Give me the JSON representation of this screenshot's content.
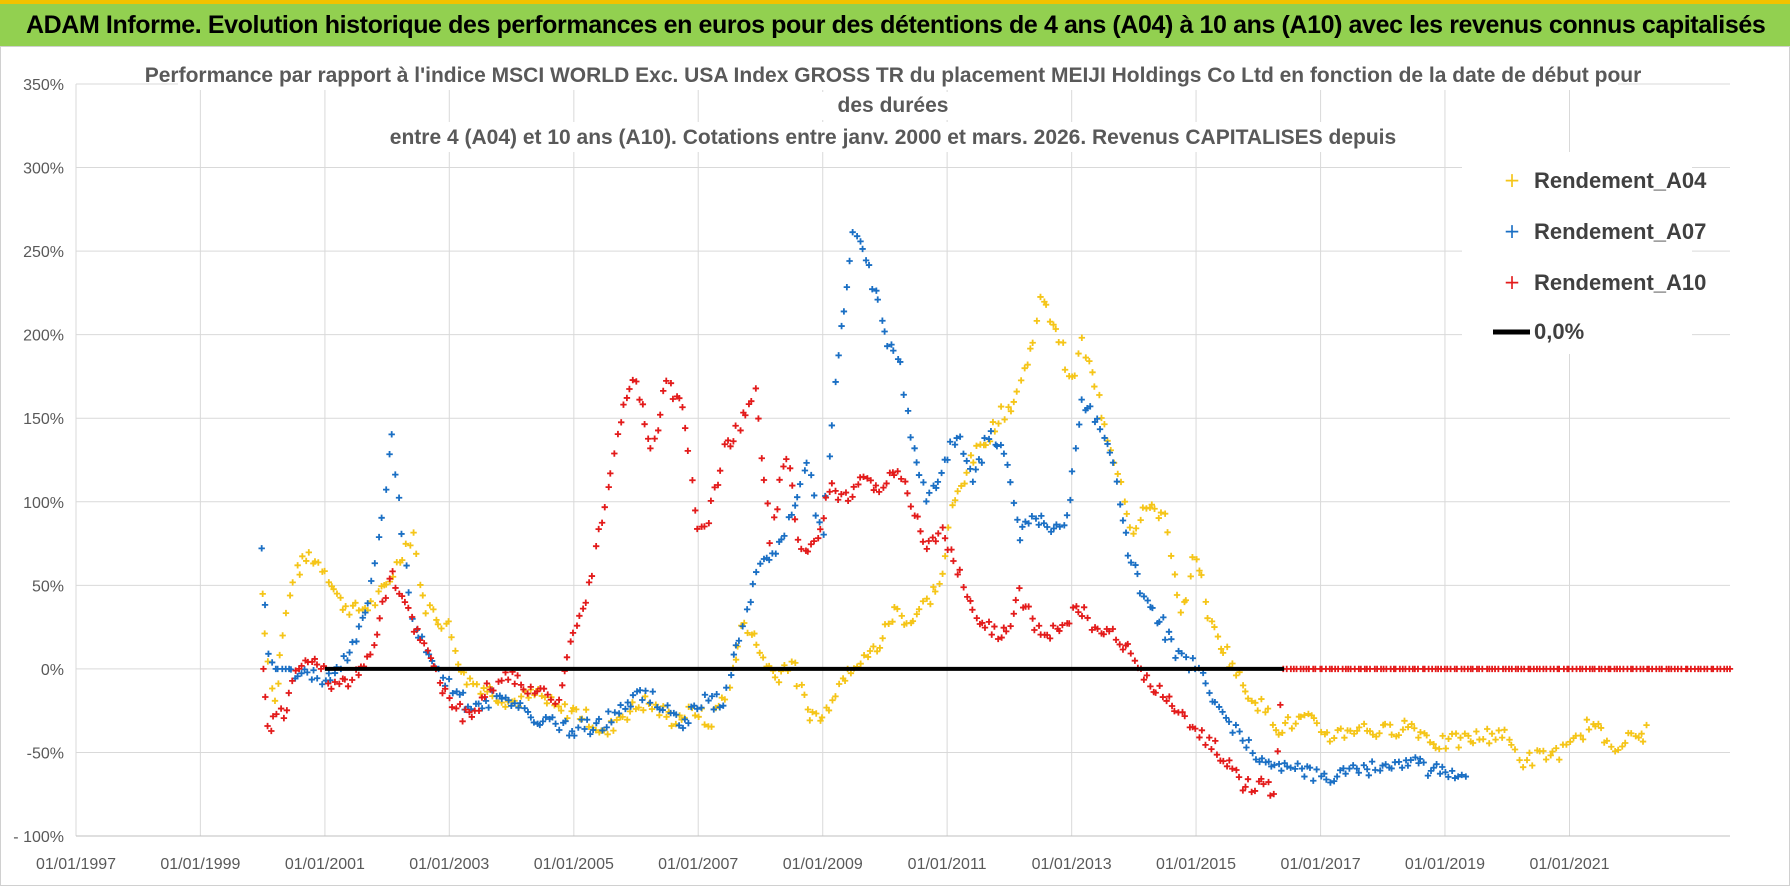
{
  "header": {
    "banner_text": "ADAM Informe. Evolution historique des performances en euros pour des détentions de 4 ans (A04) à 10 ans (A10) avec les revenus connus capitalisés"
  },
  "colors": {
    "banner_bg": "#92d050",
    "banner_border": "#f2c200",
    "A04": "#f5c518",
    "A07": "#1a6fc4",
    "A10": "#e31b1b",
    "zero_line": "#000000",
    "grid": "#d9d9d9"
  },
  "chart_data": {
    "type": "scatter",
    "title_lines": [
      "Performance par rapport à l'indice MSCI WORLD Exc. USA Index GROSS TR  du placement MEIJI Holdings Co Ltd en fonction de la date de début pour",
      "des durées",
      "entre 4 (A04) et 10 ans (A10). Cotations entre janv. 2000 et mars. 2026. Revenus CAPITALISES depuis"
    ],
    "x_axis": {
      "type": "date",
      "range": [
        "1997-01-01",
        "2023-08-01"
      ],
      "tick_labels": [
        "01/01/1997",
        "01/01/1999",
        "01/01/2001",
        "01/01/2003",
        "01/01/2005",
        "01/01/2007",
        "01/01/2009",
        "01/01/2011",
        "01/01/2013",
        "01/01/2015",
        "01/01/2017",
        "01/01/2019",
        "01/01/2021"
      ],
      "ticks": [
        "1997-01-01",
        "1999-01-01",
        "2001-01-01",
        "2003-01-01",
        "2005-01-01",
        "2007-01-01",
        "2009-01-01",
        "2011-01-01",
        "2013-01-01",
        "2015-01-01",
        "2017-01-01",
        "2019-01-01",
        "2021-01-01"
      ]
    },
    "y_axis": {
      "unit": "%",
      "range": [
        -100,
        350
      ],
      "ticks": [
        -100,
        -50,
        0,
        50,
        100,
        150,
        200,
        250,
        300,
        350
      ],
      "tick_labels": [
        "- 100%",
        "-50%",
        "0%",
        "50%",
        "100%",
        "150%",
        "200%",
        "250%",
        "300%",
        "350%"
      ]
    },
    "grid": true,
    "legend_position": "top-right",
    "legend": [
      "Rendement_A04",
      "Rendement_A07",
      "Rendement_A10",
      "0,0%"
    ],
    "series": [
      {
        "name": "Rendement_A04",
        "marker": "+",
        "color": "#f5c518",
        "points": [
          [
            "2000-01-01",
            45
          ],
          [
            "2000-02-01",
            5
          ],
          [
            "2000-03-15",
            -20
          ],
          [
            "2000-05-01",
            20
          ],
          [
            "2000-07-01",
            55
          ],
          [
            "2000-10-01",
            68
          ],
          [
            "2001-01-01",
            60
          ],
          [
            "2001-04-01",
            40
          ],
          [
            "2001-07-01",
            35
          ],
          [
            "2001-10-01",
            38
          ],
          [
            "2002-01-01",
            50
          ],
          [
            "2002-04-01",
            70
          ],
          [
            "2002-06-01",
            82
          ],
          [
            "2002-08-01",
            40
          ],
          [
            "2002-11-01",
            30
          ],
          [
            "2003-01-01",
            25
          ],
          [
            "2003-04-01",
            -5
          ],
          [
            "2003-07-01",
            -10
          ],
          [
            "2003-10-01",
            -15
          ],
          [
            "2004-01-01",
            -20
          ],
          [
            "2004-06-01",
            -15
          ],
          [
            "2004-10-01",
            -25
          ],
          [
            "2005-01-01",
            -25
          ],
          [
            "2005-04-01",
            -30
          ],
          [
            "2005-07-01",
            -40
          ],
          [
            "2005-10-01",
            -28
          ],
          [
            "2006-03-01",
            -20
          ],
          [
            "2006-08-01",
            -30
          ],
          [
            "2007-01-01",
            -25
          ],
          [
            "2007-03-01",
            -35
          ],
          [
            "2007-07-01",
            -10
          ],
          [
            "2007-10-01",
            30
          ],
          [
            "2008-01-01",
            10
          ],
          [
            "2008-04-01",
            -5
          ],
          [
            "2008-07-01",
            5
          ],
          [
            "2008-10-01",
            -25
          ],
          [
            "2009-01-01",
            -30
          ],
          [
            "2009-03-01",
            -15
          ],
          [
            "2009-06-01",
            0
          ],
          [
            "2009-09-01",
            5
          ],
          [
            "2009-12-01",
            15
          ],
          [
            "2010-03-01",
            35
          ],
          [
            "2010-06-01",
            28
          ],
          [
            "2010-09-01",
            40
          ],
          [
            "2010-12-01",
            55
          ],
          [
            "2011-02-01",
            95
          ],
          [
            "2011-05-01",
            120
          ],
          [
            "2011-08-01",
            135
          ],
          [
            "2011-11-01",
            150
          ],
          [
            "2012-02-01",
            160
          ],
          [
            "2012-05-01",
            190
          ],
          [
            "2012-07-01",
            220
          ],
          [
            "2012-10-01",
            205
          ],
          [
            "2013-01-01",
            170
          ],
          [
            "2013-03-01",
            195
          ],
          [
            "2013-05-01",
            175
          ],
          [
            "2013-08-01",
            140
          ],
          [
            "2013-10-01",
            120
          ],
          [
            "2014-01-01",
            80
          ],
          [
            "2014-04-01",
            100
          ],
          [
            "2014-07-01",
            90
          ],
          [
            "2014-10-01",
            30
          ],
          [
            "2015-01-01",
            70
          ],
          [
            "2015-04-01",
            25
          ],
          [
            "2015-07-01",
            10
          ],
          [
            "2015-10-01",
            -10
          ],
          [
            "2016-01-01",
            -20
          ],
          [
            "2016-05-01",
            -35
          ],
          [
            "2016-10-01",
            -30
          ],
          [
            "2017-03-01",
            -40
          ],
          [
            "2017-08-01",
            -35
          ],
          [
            "2018-01-01",
            -38
          ],
          [
            "2018-06-01",
            -33
          ],
          [
            "2018-12-01",
            -45
          ],
          [
            "2019-06-01",
            -42
          ],
          [
            "2019-12-01",
            -38
          ],
          [
            "2020-04-01",
            -55
          ],
          [
            "2020-08-01",
            -52
          ],
          [
            "2021-01-01",
            -48
          ],
          [
            "2021-05-01",
            -32
          ],
          [
            "2021-09-01",
            -45
          ],
          [
            "2022-01-01",
            -42
          ],
          [
            "2022-04-01",
            -38
          ]
        ]
      },
      {
        "name": "Rendement_A07",
        "marker": "+",
        "color": "#1a6fc4",
        "points": [
          [
            "2000-01-01",
            70
          ],
          [
            "2000-02-01",
            10
          ],
          [
            "2000-03-15",
            0
          ],
          [
            "2000-06-01",
            0
          ],
          [
            "2000-09-01",
            -5
          ],
          [
            "2001-01-01",
            -5
          ],
          [
            "2001-04-01",
            0
          ],
          [
            "2001-07-01",
            20
          ],
          [
            "2001-10-01",
            50
          ],
          [
            "2001-12-01",
            95
          ],
          [
            "2002-02-01",
            140
          ],
          [
            "2002-04-01",
            80
          ],
          [
            "2002-06-01",
            30
          ],
          [
            "2002-09-01",
            10
          ],
          [
            "2003-01-01",
            -10
          ],
          [
            "2003-06-01",
            -25
          ],
          [
            "2003-10-01",
            -15
          ],
          [
            "2004-01-01",
            -20
          ],
          [
            "2004-06-01",
            -30
          ],
          [
            "2004-12-01",
            -35
          ],
          [
            "2005-06-01",
            -35
          ],
          [
            "2005-12-01",
            -20
          ],
          [
            "2006-03-01",
            -15
          ],
          [
            "2006-07-01",
            -25
          ],
          [
            "2006-10-01",
            -35
          ],
          [
            "2007-01-01",
            -20
          ],
          [
            "2007-06-01",
            -20
          ],
          [
            "2007-09-01",
            20
          ],
          [
            "2008-01-01",
            60
          ],
          [
            "2008-04-01",
            70
          ],
          [
            "2008-07-01",
            90
          ],
          [
            "2008-10-01",
            120
          ],
          [
            "2009-01-01",
            80
          ],
          [
            "2009-04-01",
            190
          ],
          [
            "2009-07-01",
            260
          ],
          [
            "2009-10-01",
            240
          ],
          [
            "2010-01-01",
            200
          ],
          [
            "2010-04-01",
            180
          ],
          [
            "2010-06-01",
            140
          ],
          [
            "2010-09-01",
            100
          ],
          [
            "2010-12-01",
            120
          ],
          [
            "2011-03-01",
            140
          ],
          [
            "2011-06-01",
            110
          ],
          [
            "2011-09-01",
            140
          ],
          [
            "2011-12-01",
            130
          ],
          [
            "2012-03-01",
            80
          ],
          [
            "2012-06-01",
            90
          ],
          [
            "2012-09-01",
            85
          ],
          [
            "2012-12-01",
            90
          ],
          [
            "2013-03-01",
            160
          ],
          [
            "2013-06-01",
            150
          ],
          [
            "2013-09-01",
            120
          ],
          [
            "2013-12-01",
            70
          ],
          [
            "2014-03-01",
            40
          ],
          [
            "2014-06-01",
            30
          ],
          [
            "2014-09-01",
            10
          ],
          [
            "2015-01-01",
            0
          ],
          [
            "2015-06-01",
            -25
          ],
          [
            "2015-10-01",
            -45
          ],
          [
            "2016-03-01",
            -55
          ],
          [
            "2016-08-01",
            -60
          ],
          [
            "2017-01-01",
            -65
          ],
          [
            "2017-06-01",
            -60
          ],
          [
            "2018-01-01",
            -60
          ],
          [
            "2018-06-01",
            -55
          ],
          [
            "2018-12-01",
            -62
          ],
          [
            "2019-05-01",
            -65
          ]
        ]
      },
      {
        "name": "Rendement_A10",
        "marker": "+",
        "color": "#e31b1b",
        "points": [
          [
            "2000-01-01",
            0
          ],
          [
            "2000-02-01",
            -35
          ],
          [
            "2000-05-01",
            -25
          ],
          [
            "2000-08-01",
            0
          ],
          [
            "2000-11-01",
            5
          ],
          [
            "2001-03-01",
            -10
          ],
          [
            "2001-07-01",
            -5
          ],
          [
            "2001-11-01",
            20
          ],
          [
            "2002-02-01",
            60
          ],
          [
            "2002-04-01",
            40
          ],
          [
            "2002-07-01",
            20
          ],
          [
            "2002-10-01",
            5
          ],
          [
            "2003-01-01",
            -20
          ],
          [
            "2003-05-01",
            -30
          ],
          [
            "2003-09-01",
            -10
          ],
          [
            "2004-01-01",
            -5
          ],
          [
            "2004-06-01",
            -15
          ],
          [
            "2004-10-01",
            -20
          ],
          [
            "2005-01-01",
            20
          ],
          [
            "2005-04-01",
            50
          ],
          [
            "2005-07-01",
            100
          ],
          [
            "2005-10-01",
            150
          ],
          [
            "2006-01-01",
            175
          ],
          [
            "2006-04-01",
            130
          ],
          [
            "2006-07-01",
            170
          ],
          [
            "2006-10-01",
            160
          ],
          [
            "2007-01-01",
            80
          ],
          [
            "2007-03-01",
            90
          ],
          [
            "2007-06-01",
            130
          ],
          [
            "2007-09-01",
            145
          ],
          [
            "2007-12-01",
            165
          ],
          [
            "2008-03-01",
            80
          ],
          [
            "2008-06-01",
            130
          ],
          [
            "2008-09-01",
            70
          ],
          [
            "2008-12-01",
            80
          ],
          [
            "2009-03-01",
            110
          ],
          [
            "2009-06-01",
            100
          ],
          [
            "2009-09-01",
            115
          ],
          [
            "2009-12-01",
            105
          ],
          [
            "2010-03-01",
            120
          ],
          [
            "2010-06-01",
            100
          ],
          [
            "2010-09-01",
            70
          ],
          [
            "2010-12-01",
            80
          ],
          [
            "2011-03-01",
            60
          ],
          [
            "2011-06-01",
            35
          ],
          [
            "2011-09-01",
            25
          ],
          [
            "2011-12-01",
            20
          ],
          [
            "2012-03-01",
            45
          ],
          [
            "2012-06-01",
            25
          ],
          [
            "2012-09-01",
            20
          ],
          [
            "2012-12-01",
            30
          ],
          [
            "2013-03-01",
            35
          ],
          [
            "2013-06-01",
            20
          ],
          [
            "2013-09-01",
            25
          ],
          [
            "2013-12-01",
            10
          ],
          [
            "2014-03-01",
            -5
          ],
          [
            "2014-06-01",
            -15
          ],
          [
            "2014-09-01",
            -25
          ],
          [
            "2015-01-01",
            -35
          ],
          [
            "2015-04-01",
            -45
          ],
          [
            "2015-07-01",
            -55
          ],
          [
            "2015-10-01",
            -68
          ],
          [
            "2016-01-01",
            -70
          ],
          [
            "2016-04-01",
            -72
          ],
          [
            "2016-06-01",
            0
          ],
          [
            "2023-08-01",
            0
          ]
        ]
      }
    ],
    "reference_line": {
      "name": "0,0%",
      "value": 0,
      "from": "2001-01-01",
      "to": "2016-06-01",
      "color": "#000000"
    }
  }
}
